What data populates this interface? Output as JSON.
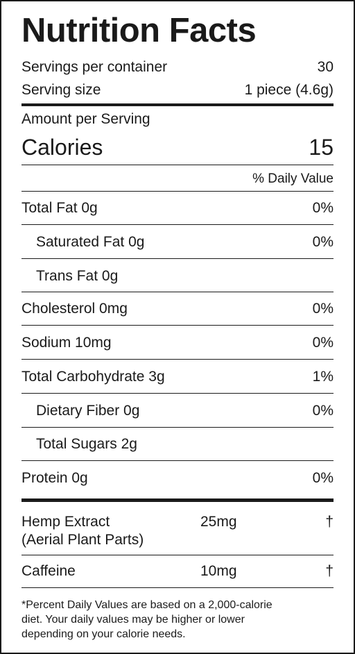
{
  "title": "Nutrition Facts",
  "servings": {
    "per_container_label": "Servings per container",
    "per_container_value": "30",
    "size_label": "Serving size",
    "size_value": "1 piece (4.6g)"
  },
  "amount_per_serving": "Amount per Serving",
  "calories": {
    "label": "Calories",
    "value": "15"
  },
  "daily_value_header": "% Daily Value",
  "nutrients": [
    {
      "label": "Total Fat 0g",
      "dv": "0%"
    },
    {
      "label": "Saturated Fat 0g",
      "dv": "0%"
    },
    {
      "label": "Trans Fat 0g",
      "dv": ""
    },
    {
      "label": "Cholesterol 0mg",
      "dv": "0%"
    },
    {
      "label": "Sodium 10mg",
      "dv": "0%"
    },
    {
      "label": "Total Carbohydrate 3g",
      "dv": "1%"
    },
    {
      "label": "Dietary Fiber 0g",
      "dv": "0%"
    },
    {
      "label": "Total Sugars 2g",
      "dv": ""
    },
    {
      "label": "Protein 0g",
      "dv": "0%"
    }
  ],
  "supplements": [
    {
      "name_line1": "Hemp Extract",
      "name_line2": "(Aerial Plant Parts)",
      "amount": "25mg",
      "dv": "†"
    },
    {
      "name_line1": "Caffeine",
      "amount": "10mg",
      "dv": "†"
    }
  ],
  "footnote": {
    "line1": "*Percent Daily Values are based on a 2,000-calorie",
    "line2": "diet. Your daily values may be higher or lower",
    "line3": "depending on your calorie needs."
  }
}
